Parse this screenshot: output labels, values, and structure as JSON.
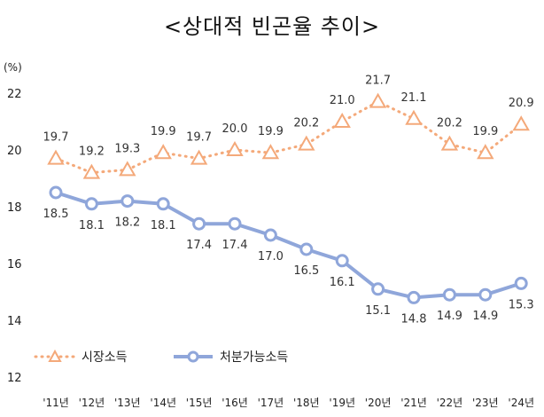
{
  "chart_data": {
    "type": "line",
    "title": "<상대적 빈곤율 추이>",
    "unit": "(%)",
    "categories": [
      "'11년",
      "'12년",
      "'13년",
      "'14년",
      "'15년",
      "'16년",
      "'17년",
      "'18년",
      "'19년",
      "'20년",
      "'21년",
      "'22년",
      "'23년",
      "'24년"
    ],
    "ylim": [
      12,
      22
    ],
    "yticks": [
      12,
      14,
      16,
      18,
      20,
      22
    ],
    "grid": false,
    "legend_position": "bottom-left",
    "series": [
      {
        "name": "시장소득",
        "style": "dotted",
        "marker": "triangle",
        "color": "#F4A97A",
        "values": [
          19.7,
          19.2,
          19.3,
          19.9,
          19.7,
          20.0,
          19.9,
          20.2,
          21.0,
          21.7,
          21.1,
          20.2,
          19.9,
          20.9
        ],
        "labels": [
          "19.7",
          "19.2",
          "19.3",
          "19.9",
          "19.7",
          "20.0",
          "19.9",
          "20.2",
          "21.0",
          "21.7",
          "21.1",
          "20.2",
          "19.9",
          "20.9"
        ]
      },
      {
        "name": "처분가능소득",
        "style": "solid",
        "marker": "circle",
        "color": "#8FA6DA",
        "values": [
          18.5,
          18.1,
          18.2,
          18.1,
          17.4,
          17.4,
          17.0,
          16.5,
          16.1,
          15.1,
          14.8,
          14.9,
          14.9,
          15.3
        ],
        "labels": [
          "18.5",
          "18.1",
          "18.2",
          "18.1",
          "17.4",
          "17.4",
          "17.0",
          "16.5",
          "16.1",
          "15.1",
          "14.8",
          "14.9",
          "14.9",
          "15.3"
        ]
      }
    ]
  }
}
